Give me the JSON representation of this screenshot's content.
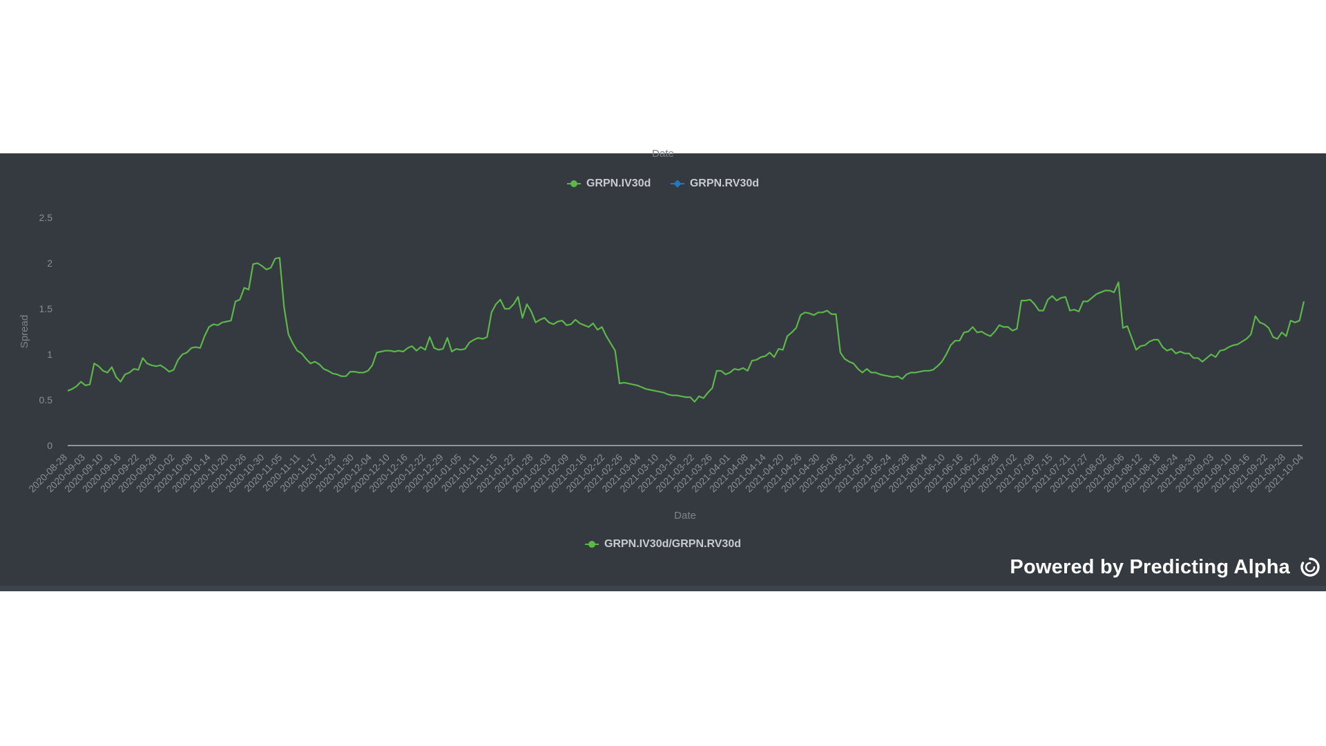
{
  "header": {
    "top_axis_title": "Date"
  },
  "legend_top": [
    {
      "label": "GRPN.IV30d",
      "color": "#5cb84a"
    },
    {
      "label": "GRPN.RV30d",
      "color": "#1f78c8"
    }
  ],
  "legend_bottom": [
    {
      "label": "GRPN.IV30d/GRPN.RV30d",
      "color": "#5cb84a"
    }
  ],
  "brand": {
    "text": "Powered by Predicting Alpha",
    "icon": "predicting-alpha-logo-icon"
  },
  "chart_data": {
    "type": "line",
    "title": "",
    "xlabel": "Date",
    "ylabel": "Spread",
    "ylim": [
      0,
      2.5
    ],
    "yticks": [
      0,
      0.5,
      1,
      1.5,
      2,
      2.5
    ],
    "ytick_labels": [
      "0",
      "0.5",
      "1",
      "1.5",
      "2",
      "2.5"
    ],
    "grid": false,
    "legend_position": "bottom-center",
    "xtick_labels": [
      "2020-08-28",
      "2020-09-03",
      "2020-09-10",
      "2020-09-16",
      "2020-09-22",
      "2020-09-28",
      "2020-10-02",
      "2020-10-08",
      "2020-10-14",
      "2020-10-20",
      "2020-10-26",
      "2020-10-30",
      "2020-11-05",
      "2020-11-11",
      "2020-11-17",
      "2020-11-23",
      "2020-11-30",
      "2020-12-04",
      "2020-12-10",
      "2020-12-16",
      "2020-12-22",
      "2020-12-29",
      "2021-01-05",
      "2021-01-11",
      "2021-01-15",
      "2021-01-22",
      "2021-01-28",
      "2021-02-03",
      "2021-02-09",
      "2021-02-16",
      "2021-02-22",
      "2021-02-26",
      "2021-03-04",
      "2021-03-10",
      "2021-03-16",
      "2021-03-22",
      "2021-03-26",
      "2021-04-01",
      "2021-04-08",
      "2021-04-14",
      "2021-04-20",
      "2021-04-26",
      "2021-04-30",
      "2021-05-06",
      "2021-05-12",
      "2021-05-18",
      "2021-05-24",
      "2021-05-28",
      "2021-06-04",
      "2021-06-10",
      "2021-06-16",
      "2021-06-22",
      "2021-06-28",
      "2021-07-02",
      "2021-07-09",
      "2021-07-15",
      "2021-07-21",
      "2021-07-27",
      "2021-08-02",
      "2021-08-06",
      "2021-08-12",
      "2021-08-18",
      "2021-08-24",
      "2021-08-30",
      "2021-09-03",
      "2021-09-10",
      "2021-09-16",
      "2021-09-22",
      "2021-09-28",
      "2021-10-04"
    ],
    "series": [
      {
        "name": "GRPN.IV30d/GRPN.RV30d",
        "color": "#5cb84a",
        "values": [
          0.6,
          0.62,
          0.65,
          0.7,
          0.66,
          0.67,
          0.9,
          0.87,
          0.82,
          0.8,
          0.86,
          0.75,
          0.7,
          0.78,
          0.8,
          0.84,
          0.83,
          0.96,
          0.9,
          0.88,
          0.87,
          0.88,
          0.85,
          0.81,
          0.83,
          0.94,
          1.0,
          1.02,
          1.07,
          1.08,
          1.07,
          1.2,
          1.3,
          1.33,
          1.32,
          1.35,
          1.36,
          1.37,
          1.58,
          1.6,
          1.73,
          1.71,
          1.99,
          2.0,
          1.97,
          1.93,
          1.95,
          2.05,
          2.06,
          1.52,
          1.22,
          1.12,
          1.04,
          1.01,
          0.95,
          0.9,
          0.92,
          0.89,
          0.84,
          0.82,
          0.79,
          0.78,
          0.76,
          0.76,
          0.81,
          0.81,
          0.8,
          0.8,
          0.82,
          0.88,
          1.02,
          1.03,
          1.04,
          1.04,
          1.03,
          1.04,
          1.03,
          1.07,
          1.09,
          1.04,
          1.08,
          1.05,
          1.19,
          1.07,
          1.05,
          1.06,
          1.18,
          1.03,
          1.06,
          1.05,
          1.06,
          1.13,
          1.16,
          1.18,
          1.17,
          1.19,
          1.46,
          1.55,
          1.6,
          1.5,
          1.5,
          1.55,
          1.63,
          1.4,
          1.55,
          1.47,
          1.35,
          1.38,
          1.4,
          1.35,
          1.33,
          1.36,
          1.37,
          1.32,
          1.33,
          1.38,
          1.34,
          1.32,
          1.3,
          1.34,
          1.27,
          1.3,
          1.2,
          1.12,
          1.04,
          0.68,
          0.69,
          0.68,
          0.67,
          0.66,
          0.64,
          0.62,
          0.61,
          0.6,
          0.59,
          0.58,
          0.56,
          0.55,
          0.55,
          0.54,
          0.53,
          0.53,
          0.48,
          0.54,
          0.52,
          0.58,
          0.63,
          0.82,
          0.82,
          0.78,
          0.8,
          0.84,
          0.83,
          0.85,
          0.82,
          0.93,
          0.94,
          0.97,
          0.98,
          1.02,
          0.97,
          1.06,
          1.05,
          1.2,
          1.24,
          1.29,
          1.43,
          1.46,
          1.45,
          1.43,
          1.46,
          1.46,
          1.48,
          1.44,
          1.44,
          1.02,
          0.95,
          0.92,
          0.9,
          0.84,
          0.8,
          0.84,
          0.8,
          0.8,
          0.78,
          0.77,
          0.76,
          0.75,
          0.76,
          0.73,
          0.78,
          0.8,
          0.8,
          0.81,
          0.82,
          0.82,
          0.83,
          0.87,
          0.92,
          1.0,
          1.1,
          1.15,
          1.15,
          1.24,
          1.25,
          1.3,
          1.24,
          1.25,
          1.22,
          1.2,
          1.25,
          1.32,
          1.3,
          1.3,
          1.26,
          1.28,
          1.59,
          1.59,
          1.6,
          1.55,
          1.48,
          1.48,
          1.6,
          1.64,
          1.59,
          1.62,
          1.63,
          1.48,
          1.49,
          1.47,
          1.58,
          1.58,
          1.62,
          1.66,
          1.68,
          1.7,
          1.7,
          1.68,
          1.79,
          1.29,
          1.31,
          1.18,
          1.05,
          1.09,
          1.1,
          1.14,
          1.16,
          1.16,
          1.08,
          1.04,
          1.06,
          1.01,
          1.03,
          1.01,
          1.01,
          0.96,
          0.96,
          0.92,
          0.96,
          1.0,
          0.97,
          1.04,
          1.05,
          1.08,
          1.1,
          1.11,
          1.14,
          1.17,
          1.22,
          1.42,
          1.35,
          1.33,
          1.29,
          1.19,
          1.17,
          1.24,
          1.2,
          1.37,
          1.35,
          1.37,
          1.58
        ]
      }
    ]
  }
}
